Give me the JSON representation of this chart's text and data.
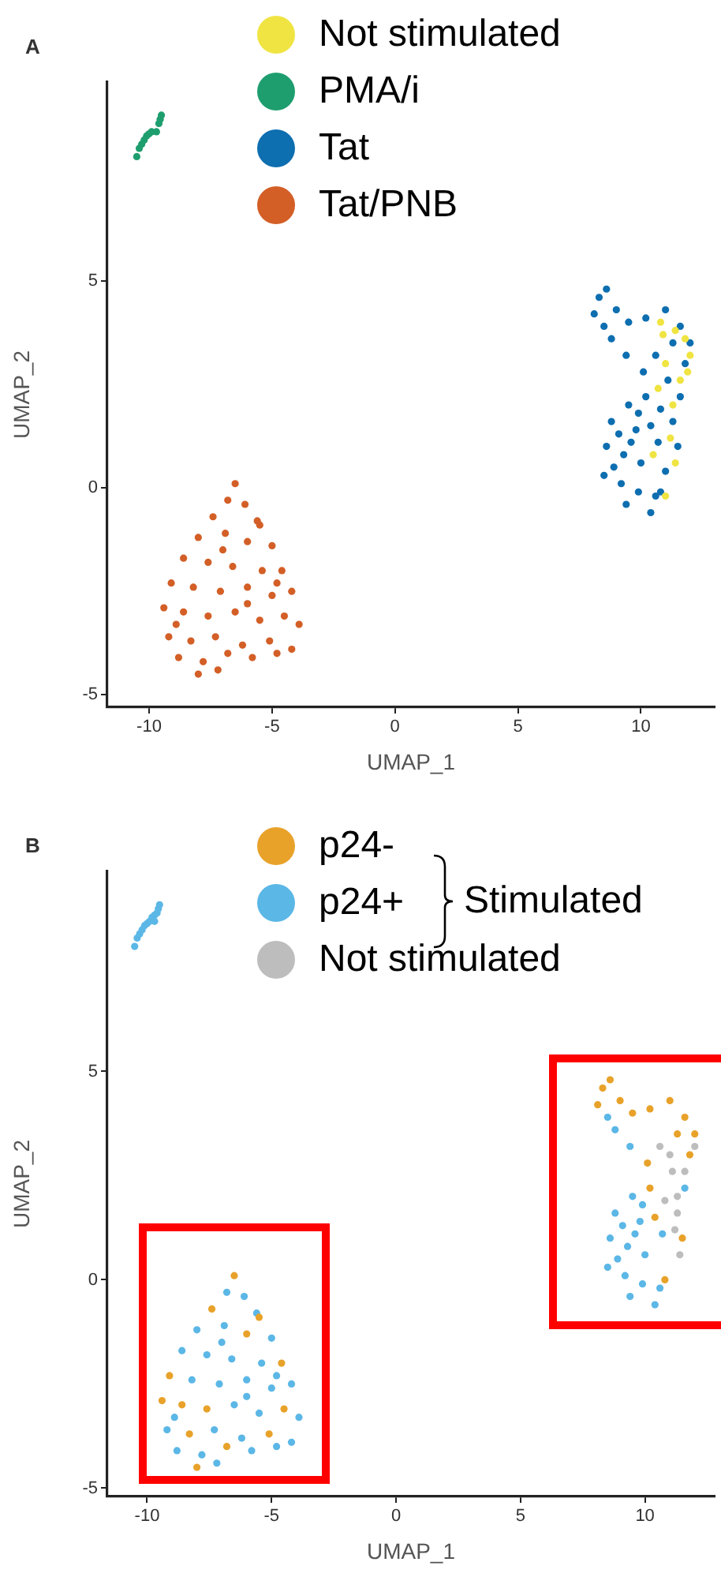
{
  "chart_data": [
    {
      "type": "scatter",
      "title": "A",
      "xlabel": "UMAP_1",
      "ylabel": "UMAP_2",
      "xlim": [
        -11.7,
        13.0
      ],
      "ylim": [
        -5.3,
        9.8
      ],
      "xticks": [
        -10,
        -5,
        0,
        5,
        10
      ],
      "yticks": [
        -5,
        0,
        5
      ],
      "grid": false,
      "legend": "top",
      "marker": "circle",
      "series": [
        {
          "name": "Not stimulated",
          "color": "#f0e442",
          "x": [
            11.4,
            11.8,
            11.0,
            11.6,
            12.0,
            10.9,
            10.7,
            11.3,
            11.2,
            11.4,
            10.5,
            11.9,
            10.8,
            11.0
          ],
          "values": [
            3.8,
            3.6,
            3.0,
            2.6,
            3.2,
            3.7,
            2.4,
            2.0,
            1.2,
            0.6,
            0.8,
            2.8,
            4.0,
            -0.2
          ]
        },
        {
          "name": "PMA/i",
          "color": "#1e9e6e",
          "x": [
            -10.5,
            -10.4,
            -10.3,
            -10.2,
            -10.1,
            -10.0,
            -9.9,
            -9.6,
            -9.55,
            -9.5,
            -9.7
          ],
          "values": [
            8.0,
            8.2,
            8.3,
            8.4,
            8.5,
            8.55,
            8.6,
            8.8,
            8.9,
            9.0,
            8.6
          ]
        },
        {
          "name": "Tat",
          "color": "#0d6eb0",
          "x": [
            8.3,
            8.6,
            8.1,
            8.5,
            9.0,
            9.5,
            10.2,
            11.0,
            11.6,
            12.0,
            11.3,
            10.6,
            11.8,
            11.1,
            10.1,
            9.4,
            8.8,
            11.6,
            10.8,
            10.2,
            9.5,
            8.8,
            9.8,
            10.7,
            11.3,
            8.6,
            9.3,
            10.0,
            11.0,
            8.5,
            9.2,
            9.9,
            10.6,
            9.4,
            10.4,
            8.9,
            9.6,
            10.4,
            9.1,
            9.9,
            11.5,
            10.8
          ],
          "values": [
            4.6,
            4.8,
            4.2,
            3.9,
            4.3,
            4.0,
            4.1,
            4.3,
            3.9,
            3.5,
            3.5,
            3.2,
            3.0,
            2.6,
            2.8,
            3.2,
            3.6,
            2.2,
            1.9,
            2.2,
            2.0,
            1.6,
            1.4,
            1.1,
            1.6,
            1.0,
            0.8,
            0.6,
            0.4,
            0.3,
            0.1,
            -0.1,
            -0.2,
            -0.4,
            -0.6,
            0.5,
            1.1,
            1.5,
            1.3,
            1.8,
            1.0,
            -0.1
          ]
        },
        {
          "name": "Tat/PNB",
          "color": "#d35f27",
          "x": [
            -6.5,
            -6.8,
            -6.1,
            -7.4,
            -5.6,
            -8.0,
            -6.9,
            -6.0,
            -5.0,
            -8.6,
            -7.6,
            -6.6,
            -5.4,
            -4.6,
            -9.1,
            -8.2,
            -7.1,
            -6.0,
            -5.0,
            -4.2,
            -9.4,
            -8.6,
            -7.6,
            -6.5,
            -5.5,
            -4.5,
            -3.9,
            -9.2,
            -8.3,
            -7.3,
            -6.2,
            -5.1,
            -4.2,
            -8.8,
            -7.8,
            -6.8,
            -5.8,
            -4.8,
            -8.0,
            -7.2,
            -5.5,
            -7.0,
            -8.9,
            -6.0,
            -4.8
          ],
          "values": [
            0.1,
            -0.3,
            -0.4,
            -0.7,
            -0.8,
            -1.2,
            -1.1,
            -1.3,
            -1.4,
            -1.7,
            -1.8,
            -1.9,
            -2.0,
            -2.0,
            -2.3,
            -2.4,
            -2.5,
            -2.4,
            -2.6,
            -2.5,
            -2.9,
            -3.0,
            -3.1,
            -3.0,
            -3.2,
            -3.1,
            -3.3,
            -3.6,
            -3.7,
            -3.6,
            -3.8,
            -3.7,
            -3.9,
            -4.1,
            -4.2,
            -4.0,
            -4.1,
            -4.0,
            -4.5,
            -4.4,
            -0.9,
            -1.5,
            -3.3,
            -2.8,
            -2.3
          ]
        }
      ]
    },
    {
      "type": "scatter",
      "title": "B",
      "xlabel": "UMAP_1",
      "ylabel": "UMAP_2",
      "xlim": [
        -11.6,
        12.8
      ],
      "ylim": [
        -5.2,
        9.8
      ],
      "xticks": [
        -10,
        -5,
        0,
        5,
        10
      ],
      "yticks": [
        -5,
        0,
        5
      ],
      "grid": false,
      "legend": "top",
      "marker": "circle",
      "annotations": [
        "Stimulated"
      ],
      "series": [
        {
          "name": "p24-",
          "color": "#e8a22a",
          "x": [
            8.3,
            8.6,
            8.1,
            9.0,
            9.5,
            10.2,
            11.0,
            11.6,
            12.0,
            11.3,
            11.8,
            10.1,
            10.2,
            10.4,
            10.8,
            11.5,
            -6.5,
            -7.4,
            -6.0,
            -4.6,
            -9.1,
            -8.6,
            -7.6,
            -4.5,
            -8.3,
            -5.1,
            -8.0,
            -6.8,
            -5.5,
            -9.4
          ],
          "values": [
            4.6,
            4.8,
            4.2,
            4.3,
            4.0,
            4.1,
            4.3,
            3.9,
            3.5,
            3.5,
            3.0,
            2.8,
            2.2,
            1.5,
            0.0,
            1.0,
            0.1,
            -0.7,
            -1.3,
            -2.0,
            -2.3,
            -3.0,
            -3.1,
            -3.1,
            -3.7,
            -3.7,
            -4.5,
            -4.0,
            -0.9,
            -2.9
          ]
        },
        {
          "name": "p24+",
          "color": "#5bb7e6",
          "x": [
            -10.5,
            -10.4,
            -10.3,
            -10.2,
            -10.1,
            -10.0,
            -9.9,
            -9.8,
            -9.7,
            -9.6,
            -9.55,
            -9.5,
            -9.7,
            8.5,
            8.8,
            9.4,
            9.5,
            8.8,
            9.8,
            8.6,
            9.3,
            10.0,
            8.5,
            9.2,
            9.9,
            10.6,
            9.4,
            10.4,
            8.9,
            9.6,
            9.1,
            9.9,
            10.7,
            11.6,
            -6.8,
            -6.1,
            -5.6,
            -8.0,
            -6.9,
            -5.0,
            -8.6,
            -7.6,
            -6.6,
            -5.4,
            -8.2,
            -7.1,
            -6.0,
            -5.0,
            -4.2,
            -6.5,
            -5.5,
            -3.9,
            -9.2,
            -7.3,
            -6.2,
            -4.2,
            -8.8,
            -7.8,
            -5.8,
            -4.8,
            -7.2,
            -7.0,
            -8.9,
            -6.0,
            -4.8
          ],
          "values": [
            8.0,
            8.2,
            8.3,
            8.4,
            8.5,
            8.55,
            8.6,
            8.7,
            8.75,
            8.8,
            8.9,
            9.0,
            8.6,
            3.9,
            3.6,
            3.2,
            2.0,
            1.6,
            1.4,
            1.0,
            0.8,
            0.6,
            0.3,
            0.1,
            -0.1,
            -0.2,
            -0.4,
            -0.6,
            0.5,
            1.1,
            1.3,
            1.8,
            1.1,
            2.2,
            -0.3,
            -0.4,
            -0.8,
            -1.2,
            -1.1,
            -1.4,
            -1.7,
            -1.8,
            -1.9,
            -2.0,
            -2.4,
            -2.5,
            -2.4,
            -2.6,
            -2.5,
            -3.0,
            -3.2,
            -3.3,
            -3.6,
            -3.6,
            -3.8,
            -3.9,
            -4.1,
            -4.2,
            -4.1,
            -4.0,
            -4.4,
            -1.5,
            -3.3,
            -2.8,
            -2.3
          ]
        },
        {
          "name": "Not stimulated",
          "color": "#bdbdbd",
          "x": [
            11.0,
            11.6,
            10.6,
            11.1,
            10.8,
            11.3,
            11.3,
            11.2,
            11.4,
            12.0
          ],
          "values": [
            3.0,
            2.6,
            3.2,
            2.6,
            1.9,
            1.6,
            2.0,
            1.2,
            0.6,
            3.2
          ]
        }
      ]
    }
  ]
}
